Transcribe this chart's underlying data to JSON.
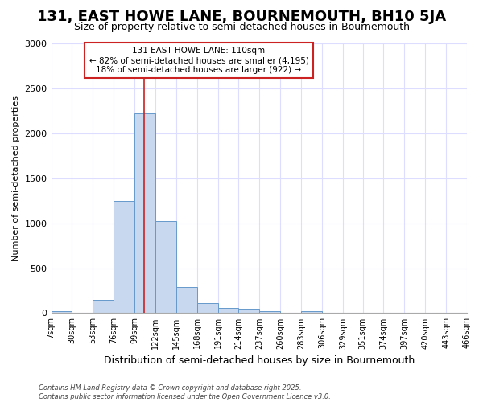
{
  "title": "131, EAST HOWE LANE, BOURNEMOUTH, BH10 5JA",
  "subtitle": "Size of property relative to semi-detached houses in Bournemouth",
  "xlabel": "Distribution of semi-detached houses by size in Bournemouth",
  "ylabel": "Number of semi-detached properties",
  "bin_edges": [
    7,
    30,
    53,
    76,
    99,
    122,
    145,
    168,
    191,
    214,
    237,
    260,
    283,
    306,
    329,
    351,
    374,
    397,
    420,
    443,
    466
  ],
  "bar_heights": [
    20,
    0,
    150,
    1250,
    2225,
    1025,
    290,
    115,
    55,
    50,
    25,
    0,
    25,
    0,
    0,
    0,
    0,
    0,
    0,
    0
  ],
  "bar_color": "#c8d8ee",
  "bar_edge_color": "#6699cc",
  "property_size": 110,
  "property_label": "131 EAST HOWE LANE: 110sqm",
  "annotation_line1": "← 82% of semi-detached houses are smaller (4,195)",
  "annotation_line2": "18% of semi-detached houses are larger (922) →",
  "vline_color": "#cc2222",
  "annotation_box_color": "#ffffff",
  "annotation_box_edge": "#cc2222",
  "footer_line1": "Contains HM Land Registry data © Crown copyright and database right 2025.",
  "footer_line2": "Contains public sector information licensed under the Open Government Licence v3.0.",
  "ylim": [
    0,
    3000
  ],
  "background_color": "#ffffff",
  "grid_color": "#ddddff",
  "title_fontsize": 13,
  "subtitle_fontsize": 9
}
